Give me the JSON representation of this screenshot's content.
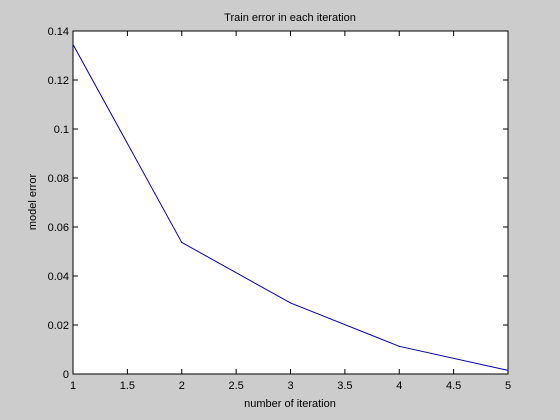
{
  "chart_data": {
    "type": "line",
    "title": "Train error in each iteration",
    "xlabel": "number of iteration",
    "ylabel": "model error",
    "xlim": [
      1,
      5
    ],
    "ylim": [
      0,
      0.14
    ],
    "grid": false,
    "x_ticks": [
      "1",
      "1.5",
      "2",
      "2.5",
      "3",
      "3.5",
      "4",
      "4.5",
      "5"
    ],
    "y_ticks": [
      "0",
      "0.02",
      "0.04",
      "0.06",
      "0.08",
      "0.1",
      "0.12",
      "0.14"
    ],
    "series": [
      {
        "color": "#0000aa",
        "x": [
          1,
          2,
          3,
          4,
          5
        ],
        "y": [
          0.1345,
          0.0537,
          0.029,
          0.0113,
          0.0015
        ]
      }
    ]
  }
}
